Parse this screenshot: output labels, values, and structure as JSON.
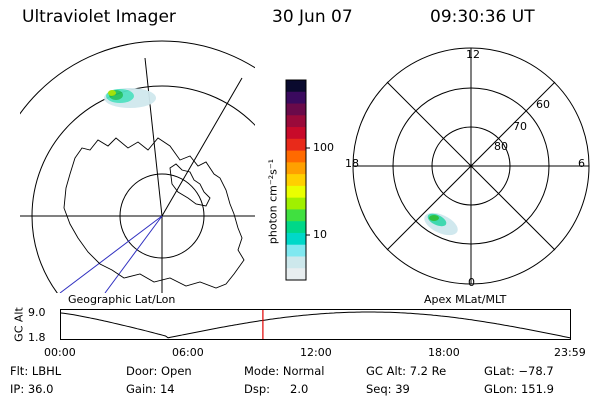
{
  "header": {
    "title": "Ultraviolet Imager",
    "date": "30 Jun 07",
    "time": "09:30:36 UT"
  },
  "left_panel": {
    "label": "Geographic Lat/Lon"
  },
  "colorbar": {
    "unit_label": "photon cm⁻²s⁻¹",
    "ticks": [
      "100",
      "10"
    ],
    "colors": [
      "#0a0a2e",
      "#3a0a5e",
      "#6a0a4a",
      "#9a0a3a",
      "#c80a2a",
      "#e82a1a",
      "#ff6a00",
      "#ffa000",
      "#ffd000",
      "#eaff00",
      "#a0f000",
      "#40e040",
      "#00d888",
      "#00d8c8",
      "#80e8f0",
      "#cde8ec",
      "#e8eef0"
    ]
  },
  "right_panel": {
    "label": "Apex MLat/MLT",
    "mlt_labels": {
      "top": "12",
      "left": "18",
      "right": "6",
      "bottom": "0"
    },
    "lat_labels": [
      "80",
      "70",
      "60"
    ]
  },
  "altitude_plot": {
    "ylabel": "GC Alt",
    "ytick_top": "9.0",
    "ytick_bottom": "1.8",
    "current_time": "09:30"
  },
  "time_axis": [
    "00:00",
    "06:00",
    "12:00",
    "18:00",
    "23:59"
  ],
  "info": {
    "flt": "Flt: LBHL",
    "door": "Door: Open",
    "mode": "Mode: Normal",
    "gc_alt": "GC Alt: 7.2 Re",
    "glat": "GLat: −78.7",
    "ip": "IP: 36.0",
    "gain": "Gain: 14",
    "dsp_label": "Dsp:",
    "dsp_value": "2.0",
    "seq": "Seq: 39",
    "glon": "GLon: 151.9"
  }
}
